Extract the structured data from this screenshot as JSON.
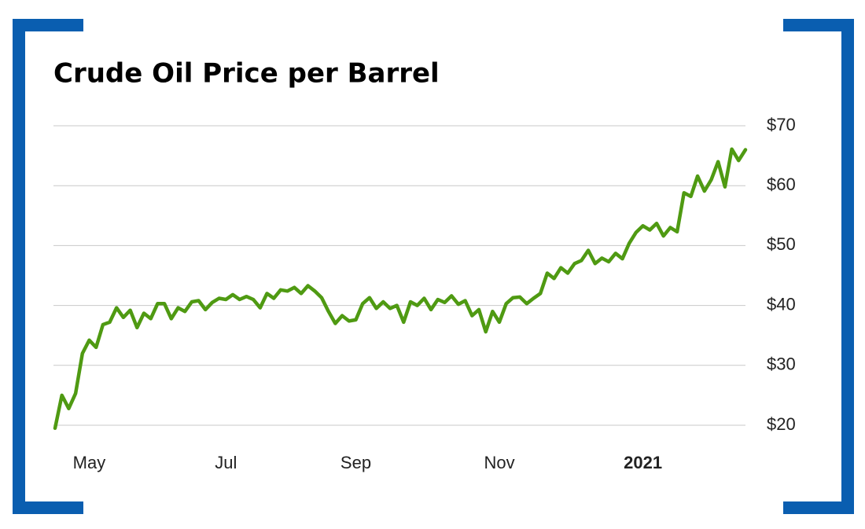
{
  "chart_data": {
    "type": "line",
    "title": "Crude Oil Price per Barrel",
    "categories": [
      null,
      null,
      null,
      null,
      null,
      "May",
      null,
      null,
      null,
      null,
      null,
      null,
      null,
      null,
      null,
      null,
      null,
      null,
      null,
      null,
      null,
      null,
      null,
      null,
      null,
      "Jul",
      null,
      null,
      null,
      null,
      null,
      null,
      null,
      null,
      null,
      null,
      null,
      null,
      null,
      null,
      null,
      null,
      null,
      null,
      "Sep",
      null,
      null,
      null,
      null,
      null,
      null,
      null,
      null,
      null,
      null,
      null,
      null,
      null,
      null,
      null,
      null,
      null,
      null,
      null,
      null,
      "Nov",
      null,
      null,
      null,
      null,
      null,
      null,
      null,
      null,
      null,
      null,
      null,
      null,
      null,
      null,
      null,
      null,
      null,
      null,
      null,
      null,
      "2021",
      null,
      null,
      null,
      null,
      null,
      null,
      null,
      null,
      null,
      null,
      null,
      null,
      null,
      null,
      null
    ],
    "series": [
      {
        "name": "Crude oil",
        "color": "#4f9a12",
        "values": [
          19.5,
          25,
          22.8,
          25.3,
          32,
          34.2,
          33,
          36.8,
          37.2,
          39.6,
          38,
          39.2,
          36.3,
          38.7,
          37.8,
          40.3,
          40.3,
          37.8,
          39.6,
          39,
          40.6,
          40.8,
          39.3,
          40.5,
          41.2,
          41,
          41.8,
          41,
          41.5,
          41,
          39.6,
          42,
          41.2,
          42.6,
          42.4,
          43,
          42,
          43.3,
          42.4,
          41.3,
          39,
          37,
          38.3,
          37.4,
          37.6,
          40.3,
          41.3,
          39.5,
          40.6,
          39.5,
          40,
          37.2,
          40.6,
          40,
          41.2,
          39.3,
          41,
          40.5,
          41.6,
          40.2,
          40.8,
          38.3,
          39.3,
          35.6,
          39,
          37.2,
          40.3,
          41.3,
          41.4,
          40.3,
          41.2,
          42,
          45.4,
          44.5,
          46.3,
          45.4,
          47,
          47.5,
          49.2,
          47,
          47.9,
          47.3,
          48.7,
          47.8,
          50.4,
          52.2,
          53.3,
          52.6,
          53.7,
          51.6,
          53,
          52.3,
          58.8,
          58.2,
          61.6,
          59.1,
          61,
          64,
          59.8,
          66.1,
          64.2,
          66
        ]
      }
    ],
    "ylim": [
      20,
      70
    ],
    "yticks": [
      {
        "value": 20,
        "label": "$20"
      },
      {
        "value": 30,
        "label": "$30"
      },
      {
        "value": 40,
        "label": "$40"
      },
      {
        "value": 50,
        "label": "$50"
      },
      {
        "value": 60,
        "label": "$60"
      },
      {
        "value": 70,
        "label": "$70"
      }
    ],
    "grid": true
  }
}
